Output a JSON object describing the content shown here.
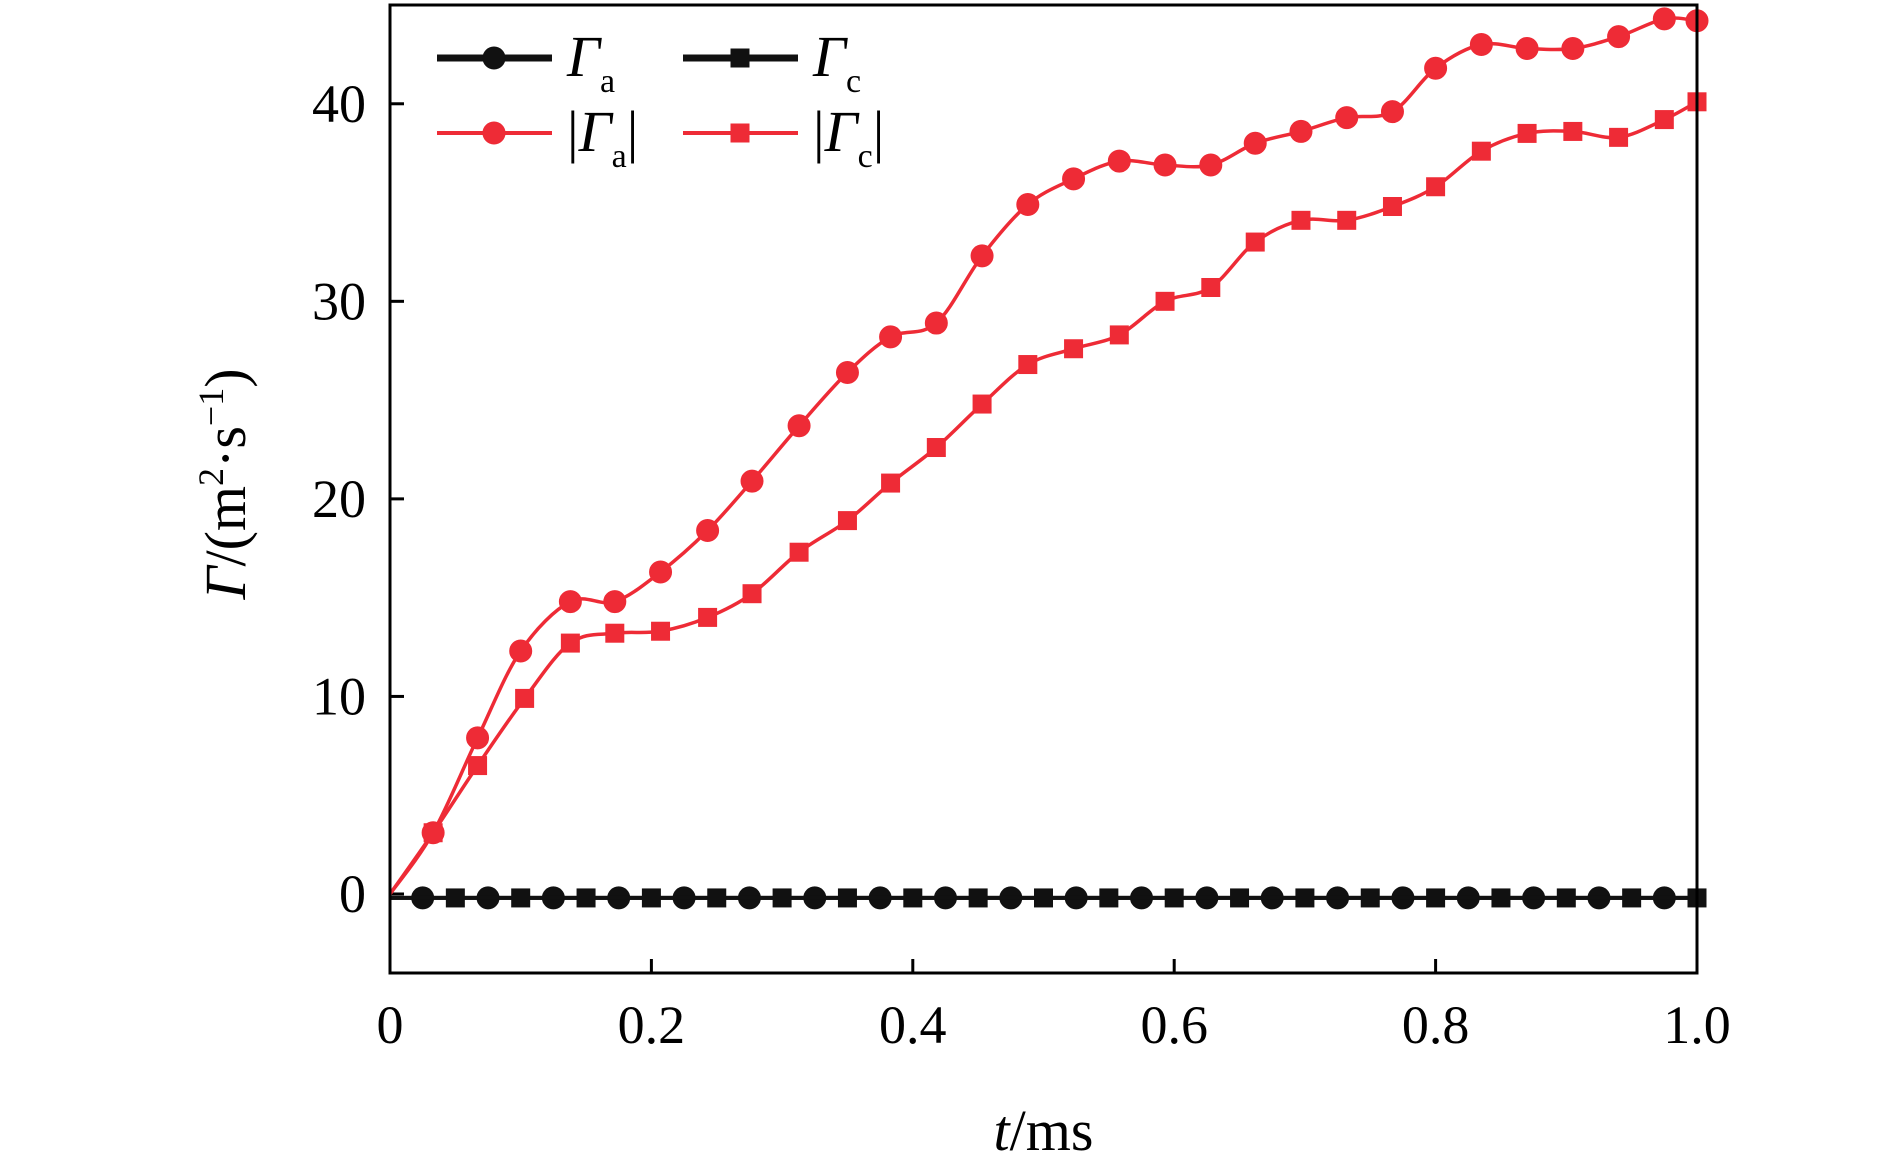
{
  "chart_data": {
    "type": "line",
    "title": "",
    "xlabel": {
      "symbol": "t",
      "unit": "/ms"
    },
    "ylabel": {
      "symbol": "Γ",
      "unit": "/(m",
      "sup1": "2",
      "mid": "·s",
      "sup2": "−1",
      "close": ")"
    },
    "xlim": [
      0,
      1.0
    ],
    "ylim": [
      -4,
      45
    ],
    "xticks": [
      0,
      0.2,
      0.4,
      0.6,
      0.8,
      1.0
    ],
    "xtick_labels": [
      "0",
      "0.2",
      "0.4",
      "0.6",
      "0.8",
      "1.0"
    ],
    "yticks": [
      0,
      10,
      20,
      30,
      40
    ],
    "ytick_labels": [
      "0",
      "10",
      "20",
      "30",
      "40"
    ],
    "grid": false,
    "legend_position": "top-left",
    "series": [
      {
        "name": "Γ",
        "name_sub": "a",
        "color": "#111111",
        "marker": "circle",
        "x": [
          0.025,
          0.075,
          0.125,
          0.175,
          0.225,
          0.275,
          0.325,
          0.375,
          0.425,
          0.475,
          0.525,
          0.575,
          0.625,
          0.675,
          0.725,
          0.775,
          0.825,
          0.875,
          0.925,
          0.975
        ],
        "y": [
          -0.2,
          -0.2,
          -0.2,
          -0.2,
          -0.2,
          -0.2,
          -0.2,
          -0.2,
          -0.2,
          -0.2,
          -0.2,
          -0.2,
          -0.2,
          -0.2,
          -0.2,
          -0.2,
          -0.2,
          -0.2,
          -0.2,
          -0.2
        ]
      },
      {
        "name": "Γ",
        "name_sub": "c",
        "color": "#111111",
        "marker": "square",
        "x": [
          0.05,
          0.1,
          0.15,
          0.2,
          0.25,
          0.3,
          0.35,
          0.4,
          0.45,
          0.5,
          0.55,
          0.6,
          0.65,
          0.7,
          0.75,
          0.8,
          0.85,
          0.9,
          0.95,
          1.0
        ],
        "y": [
          -0.2,
          -0.2,
          -0.2,
          -0.2,
          -0.2,
          -0.2,
          -0.2,
          -0.2,
          -0.2,
          -0.2,
          -0.2,
          -0.2,
          -0.2,
          -0.2,
          -0.2,
          -0.2,
          -0.2,
          -0.2,
          -0.2,
          -0.2
        ]
      },
      {
        "name": "|Γ",
        "name_sub": "a",
        "name_close": "|",
        "color": "#ee2b36",
        "marker": "circle",
        "x": [
          0,
          0.033,
          0.067,
          0.1,
          0.138,
          0.172,
          0.207,
          0.243,
          0.277,
          0.313,
          0.35,
          0.383,
          0.418,
          0.453,
          0.488,
          0.523,
          0.558,
          0.593,
          0.628,
          0.662,
          0.697,
          0.732,
          0.767,
          0.8,
          0.835,
          0.87,
          0.905,
          0.94,
          0.975,
          1.0
        ],
        "y": [
          0,
          3.1,
          7.9,
          12.3,
          14.8,
          14.8,
          16.3,
          18.4,
          20.9,
          23.7,
          26.4,
          28.2,
          28.9,
          32.3,
          34.9,
          36.2,
          37.1,
          36.9,
          36.9,
          38.0,
          38.6,
          39.3,
          39.6,
          41.8,
          43.0,
          42.8,
          42.8,
          43.4,
          44.3,
          44.2
        ]
      },
      {
        "name": "|Γ",
        "name_sub": "c",
        "name_close": "|",
        "color": "#ee2b36",
        "marker": "square",
        "x": [
          0,
          0.033,
          0.067,
          0.103,
          0.138,
          0.172,
          0.207,
          0.243,
          0.277,
          0.313,
          0.35,
          0.383,
          0.418,
          0.453,
          0.488,
          0.523,
          0.558,
          0.593,
          0.628,
          0.662,
          0.697,
          0.732,
          0.767,
          0.8,
          0.835,
          0.87,
          0.905,
          0.94,
          0.975,
          1.0
        ],
        "y": [
          0,
          3.1,
          6.5,
          9.9,
          12.7,
          13.2,
          13.3,
          14.0,
          15.2,
          17.3,
          18.9,
          20.8,
          22.6,
          24.8,
          26.8,
          27.6,
          28.3,
          30.0,
          30.7,
          33.0,
          34.1,
          34.1,
          34.8,
          35.8,
          37.6,
          38.5,
          38.6,
          38.3,
          39.2,
          40.1
        ]
      }
    ]
  }
}
